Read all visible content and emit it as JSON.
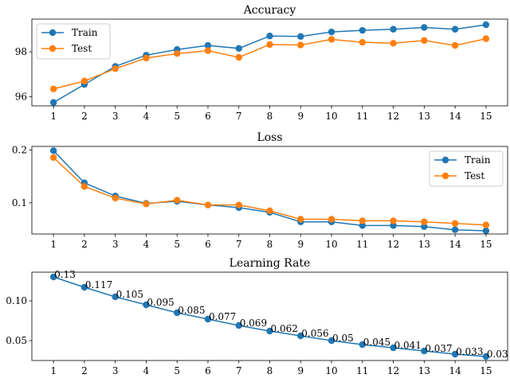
{
  "chart_data": [
    {
      "type": "line",
      "title": "Accuracy",
      "xlabel": "",
      "ylabel": "",
      "x": [
        1,
        2,
        3,
        4,
        5,
        6,
        7,
        8,
        9,
        10,
        11,
        12,
        13,
        14,
        15
      ],
      "ylim": [
        95.6,
        99.45
      ],
      "yticks": [
        96,
        98
      ],
      "grid": false,
      "legend": "upper-left",
      "series": [
        {
          "name": "Train",
          "color": "#1f77b4",
          "values": [
            95.75,
            96.55,
            97.35,
            97.85,
            98.1,
            98.28,
            98.15,
            98.7,
            98.68,
            98.88,
            98.95,
            99.0,
            99.08,
            99.0,
            99.2
          ]
        },
        {
          "name": "Test",
          "color": "#ff7f0e",
          "values": [
            96.35,
            96.7,
            97.25,
            97.72,
            97.92,
            98.05,
            97.75,
            98.32,
            98.3,
            98.55,
            98.42,
            98.38,
            98.5,
            98.28,
            98.58
          ]
        }
      ]
    },
    {
      "type": "line",
      "title": "Loss",
      "xlabel": "",
      "ylabel": "",
      "x": [
        1,
        2,
        3,
        4,
        5,
        6,
        7,
        8,
        9,
        10,
        11,
        12,
        13,
        14,
        15
      ],
      "ylim": [
        0.041,
        0.207
      ],
      "yticks": [
        0.1,
        0.2
      ],
      "grid": false,
      "legend": "upper-right",
      "series": [
        {
          "name": "Train",
          "color": "#1f77b4",
          "values": [
            0.199,
            0.138,
            0.113,
            0.099,
            0.103,
            0.096,
            0.091,
            0.082,
            0.064,
            0.064,
            0.057,
            0.057,
            0.055,
            0.049,
            0.047
          ]
        },
        {
          "name": "Test",
          "color": "#ff7f0e",
          "values": [
            0.186,
            0.131,
            0.109,
            0.098,
            0.105,
            0.096,
            0.096,
            0.085,
            0.069,
            0.069,
            0.066,
            0.066,
            0.064,
            0.061,
            0.058
          ]
        }
      ]
    },
    {
      "type": "line",
      "title": "Learning Rate",
      "xlabel": "",
      "ylabel": "",
      "x": [
        1,
        2,
        3,
        4,
        5,
        6,
        7,
        8,
        9,
        10,
        11,
        12,
        13,
        14,
        15
      ],
      "ylim": [
        0.025,
        0.136
      ],
      "yticks": [
        0.05,
        0.1
      ],
      "grid": false,
      "series": [
        {
          "color": "#1f77b4",
          "values": [
            0.13,
            0.117,
            0.105,
            0.095,
            0.085,
            0.077,
            0.069,
            0.062,
            0.056,
            0.05,
            0.045,
            0.041,
            0.037,
            0.033,
            0.03
          ]
        }
      ],
      "data_labels": [
        "0.13",
        "0.117",
        "0.105",
        "0.095",
        "0.085",
        "0.077",
        "0.069",
        "0.062",
        "0.056",
        "0.05",
        "0.045",
        "0.041",
        "0.037",
        "0.033",
        "0.03"
      ]
    }
  ]
}
